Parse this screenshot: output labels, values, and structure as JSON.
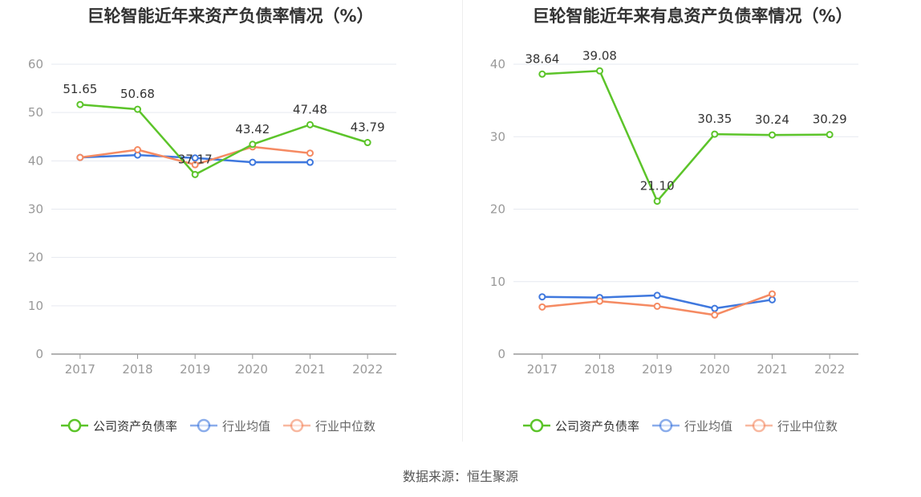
{
  "source_label": "数据来源：恒生聚源",
  "chart_data": [
    {
      "type": "line",
      "title": "巨轮智能近年来资产负债率情况（%）",
      "categories": [
        "2017",
        "2018",
        "2019",
        "2020",
        "2021",
        "2022"
      ],
      "ylim": [
        0,
        60
      ],
      "yticks": [
        0,
        10,
        20,
        30,
        40,
        50,
        60
      ],
      "grid": true,
      "legend_position": "bottom",
      "series": [
        {
          "name": "公司资产负债率",
          "color": "#5cc42a",
          "values": [
            51.65,
            50.68,
            37.17,
            43.42,
            47.48,
            43.79
          ],
          "labels": [
            "51.65",
            "50.68",
            "37.17",
            "43.42",
            "47.48",
            "43.79"
          ]
        },
        {
          "name": "行业均值",
          "color": "#3f78de",
          "values": [
            40.7,
            41.2,
            40.6,
            39.7,
            39.7,
            null
          ]
        },
        {
          "name": "行业中位数",
          "color": "#f58a62",
          "values": [
            40.7,
            42.3,
            39.2,
            42.9,
            41.6,
            null
          ]
        }
      ]
    },
    {
      "type": "line",
      "title": "巨轮智能近年来有息资产负债率情况（%）",
      "categories": [
        "2017",
        "2018",
        "2019",
        "2020",
        "2021",
        "2022"
      ],
      "ylim": [
        0,
        40
      ],
      "yticks": [
        0,
        10,
        20,
        30,
        40
      ],
      "grid": true,
      "legend_position": "bottom",
      "series": [
        {
          "name": "公司资产负债率",
          "color": "#5cc42a",
          "values": [
            38.64,
            39.08,
            21.1,
            30.35,
            30.24,
            30.29
          ],
          "labels": [
            "38.64",
            "39.08",
            "21.10",
            "30.35",
            "30.24",
            "30.29"
          ]
        },
        {
          "name": "行业均值",
          "color": "#3f78de",
          "values": [
            7.9,
            7.8,
            8.1,
            6.3,
            7.5,
            null
          ]
        },
        {
          "name": "行业中位数",
          "color": "#f58a62",
          "values": [
            6.5,
            7.3,
            6.6,
            5.4,
            8.3,
            null
          ]
        }
      ]
    }
  ]
}
